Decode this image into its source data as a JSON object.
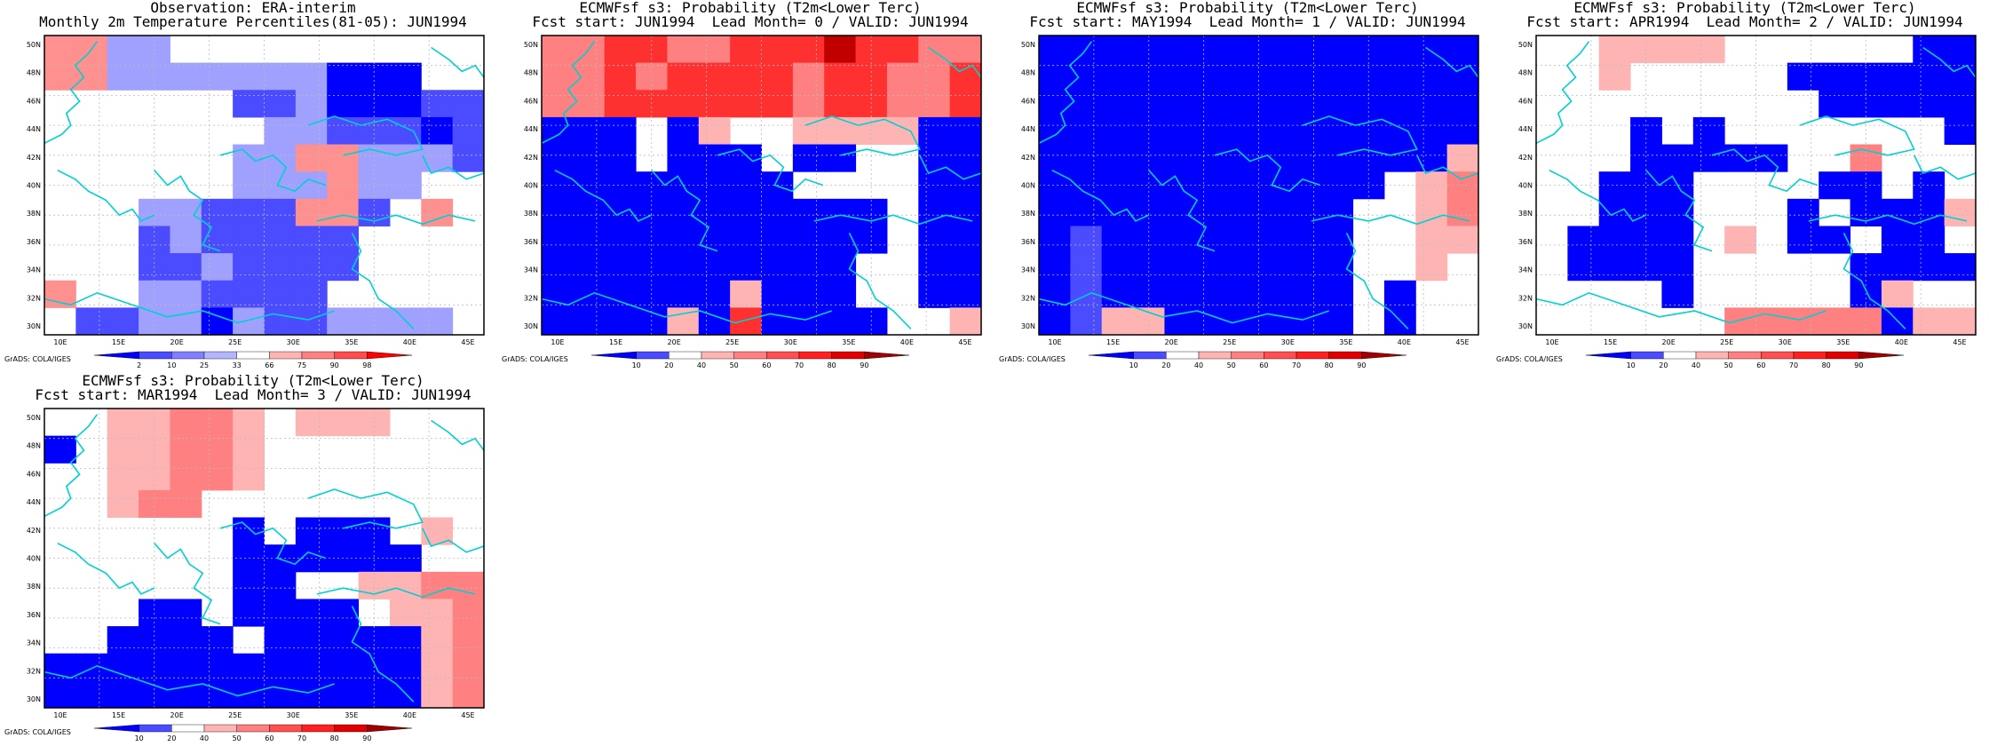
{
  "palette": {
    "obs_colors": [
      "#0000ff",
      "#4b4bff",
      "#8080ff",
      "#b4b4ff",
      "#ffffff",
      "#ffb4b4",
      "#ff8080",
      "#ff4b4b",
      "#ff0000"
    ],
    "prob_colors": [
      "#0000ff",
      "#4b4bff",
      "#ffffff",
      "#ffb4b4",
      "#ff8080",
      "#ff5050",
      "#ff2020",
      "#e00000",
      "#a00000"
    ],
    "coast_color": "#00d0d0"
  },
  "axes": {
    "lat_labels": [
      "50N",
      "48N",
      "46N",
      "44N",
      "42N",
      "40N",
      "38N",
      "36N",
      "34N",
      "32N",
      "30N"
    ],
    "lon_labels": [
      "10E",
      "15E",
      "20E",
      "25E",
      "30E",
      "35E",
      "40E",
      "45E"
    ]
  },
  "panels": [
    {
      "id": "obs",
      "title1": "Observation: ERA-interim",
      "title2": "Monthly 2m Temperature Percentiles(81-05): JUN1994",
      "colorbar_labels": [
        "2",
        "10",
        "25",
        "33",
        "66",
        "75",
        "90",
        "98"
      ],
      "footer": "GrADS: COLA/IGES",
      "grid": [
        "ssww..........",
        "sswwwwwwwbbb..",
        "......ddwbbbdd",
        ".......wwdddbd",
        "......wwsswwwd",
        "......wwwsww..",
        "...wwdddssd.s.",
        "...dwddddd....",
        "...ddwdddd....",
        "s..wwdddd.....",
        ".ddwwbwddwwww."
      ]
    },
    {
      "id": "lead0",
      "title1": "ECMWFsf s3: Probability (T2m<Lower Terc)",
      "title2": "Fcst start: JUN1994  Lead Month= 0 / VALID: JUN1994",
      "colorbar_labels": [
        "10",
        "20",
        "40",
        "50",
        "60",
        "70",
        "80",
        "90"
      ],
      "footer": "GrADS: COLA/IGES",
      "grid": [
        "rrRRrrRRRXRRrr",
        "rrRrRRRRrRRrrR",
        "rrRRRRRRrRRrrR",
        "bbb.bp..ppppbb",
        "bbb.bbb.bb..bb",
        "bbbbbbbb....bb",
        "bbbbbbbbbbb.bb",
        "bbbbbbbbbbb.bb",
        "bbbbbbbbbb..bb",
        "bbbbbbpbbb..bb",
        "bbbbpbRbbbb..p"
      ]
    },
    {
      "id": "lead1",
      "title1": "ECMWFsf s3: Probability (T2m<Lower Terc)",
      "title2": "Fcst start: MAY1994  Lead Month= 1 / VALID: JUN1994",
      "colorbar_labels": [
        "10",
        "20",
        "40",
        "50",
        "60",
        "70",
        "80",
        "90"
      ],
      "footer": "GrADS: COLA/IGES",
      "grid": [
        "bbbbbbbbbbbbbb",
        "bbbbbbbbbbbbbb",
        "bbbbbbbbbbbbbb",
        "bbbbbbbbbbbbbb",
        "bbbbbbbbbbbbbp",
        "bbbbbbbbbbb.pr",
        "bbbbbbbbbb..pr",
        "bwbbbbbbbb..pp",
        "bwbbbbbbbb..p.",
        "bwbbbbbbbb.b..",
        "bwppbbbbbb.b.."
      ]
    },
    {
      "id": "lead2",
      "title1": "ECMWFsf s3: Probability (T2m<Lower Terc)",
      "title2": "Fcst start: APR1994  Lead Month= 2 / VALID: JUN1994",
      "colorbar_labels": [
        "10",
        "20",
        "40",
        "50",
        "60",
        "70",
        "80",
        "90"
      ],
      "footer": "GrADS: COLA/IGES",
      "grid": [
        "..pppp......bb",
        "..p.....bbbbbb",
        ".........bbbbb",
        "...b.b.......b",
        "...bbbbb..r...",
        "..bbb....bb.b.",
        "..bbb...b.bbbp",
        ".bbbb.p.bb.bb.",
        ".bbbb.....bbbb",
        "....b.....bp..",
        "......rrrrrbpp"
      ]
    },
    {
      "id": "lead3",
      "title1": "ECMWFsf s3: Probability (T2m<Lower Terc)",
      "title2": "Fcst start: MAR1994  Lead Month= 3 / VALID: JUN1994",
      "colorbar_labels": [
        "10",
        "20",
        "40",
        "50",
        "60",
        "70",
        "80",
        "90"
      ],
      "footer": "GrADS: COLA/IGES",
      "grid": [
        "..pprrp.ppp...",
        "b.pprrp.......",
        "..pprrp.......",
        "..prr.........",
        "......b.bbb.p.",
        "......bbbbbb..",
        "......bb..pprr",
        "...bb.bbbb.ppr",
        "..bbbb.bbbbbpr",
        "bbbbbbbbbbbbpr",
        "bbbbbbbbbbbbpr"
      ]
    }
  ]
}
